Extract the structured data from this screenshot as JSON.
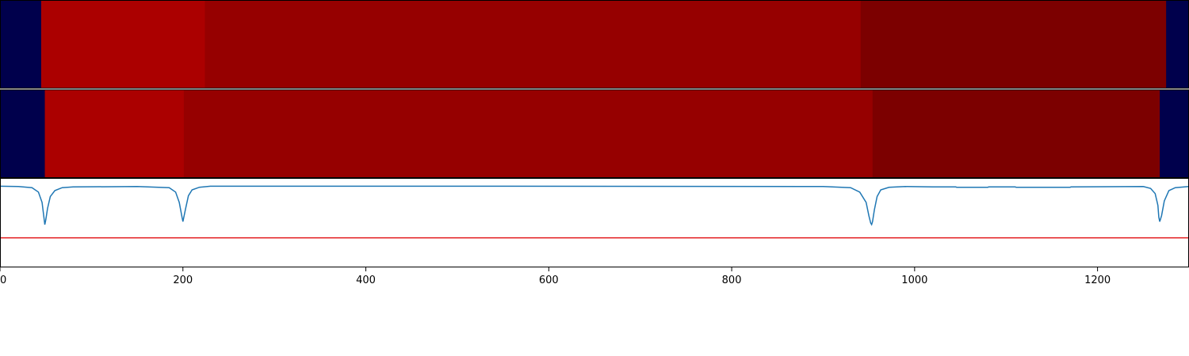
{
  "chart_data": [
    {
      "type": "heatmap",
      "panel": "top-strip",
      "xlim": [
        0,
        1300
      ],
      "segments": [
        {
          "start": 0,
          "end": 45,
          "color": "#00004c"
        },
        {
          "start": 45,
          "end": 224,
          "color": "#ab0000"
        },
        {
          "start": 224,
          "end": 941,
          "color": "#960000"
        },
        {
          "start": 941,
          "end": 1275,
          "color": "#7c0000"
        },
        {
          "start": 1275,
          "end": 1300,
          "color": "#00004c"
        }
      ]
    },
    {
      "type": "heatmap",
      "panel": "middle-strip",
      "xlim": [
        0,
        1300
      ],
      "segments": [
        {
          "start": 0,
          "end": 49,
          "color": "#00004c"
        },
        {
          "start": 49,
          "end": 201,
          "color": "#ab0000"
        },
        {
          "start": 201,
          "end": 954,
          "color": "#960000"
        },
        {
          "start": 954,
          "end": 1268,
          "color": "#7c0000"
        },
        {
          "start": 1268,
          "end": 1300,
          "color": "#00004c"
        }
      ]
    },
    {
      "type": "line",
      "panel": "signal",
      "xlim": [
        0,
        1300
      ],
      "ylim": [
        -1.1,
        0.1
      ],
      "xticks": [
        0,
        200,
        400,
        600,
        800,
        1000,
        1200
      ],
      "threshold": {
        "value": -0.7,
        "color": "#e31a1c"
      },
      "series": [
        {
          "color": "#1f77b4",
          "x": [
            0,
            20,
            35,
            42,
            46,
            48,
            49,
            50,
            52,
            55,
            60,
            68,
            80,
            150,
            185,
            192,
            196,
            199,
            200,
            201,
            203,
            206,
            210,
            218,
            230,
            500,
            900,
            930,
            940,
            947,
            950,
            952,
            953,
            954,
            956,
            959,
            963,
            972,
            990,
            1020,
            1045,
            1046,
            1080,
            1081,
            1110,
            1111,
            1170,
            1171,
            1250,
            1258,
            1263,
            1266,
            1267,
            1268,
            1270,
            1273,
            1278,
            1285,
            1300
          ],
          "y": [
            0.0,
            -0.005,
            -0.02,
            -0.08,
            -0.22,
            -0.42,
            -0.52,
            -0.46,
            -0.3,
            -0.14,
            -0.06,
            -0.02,
            -0.01,
            -0.005,
            -0.02,
            -0.08,
            -0.22,
            -0.42,
            -0.48,
            -0.42,
            -0.3,
            -0.13,
            -0.05,
            -0.015,
            0.0,
            0.0,
            -0.005,
            -0.02,
            -0.08,
            -0.22,
            -0.4,
            -0.5,
            -0.52,
            -0.48,
            -0.32,
            -0.14,
            -0.05,
            -0.015,
            -0.005,
            -0.01,
            -0.01,
            -0.015,
            -0.015,
            -0.01,
            -0.01,
            -0.015,
            -0.015,
            -0.01,
            -0.005,
            -0.03,
            -0.1,
            -0.26,
            -0.42,
            -0.48,
            -0.4,
            -0.2,
            -0.06,
            -0.02,
            -0.005
          ]
        }
      ]
    }
  ]
}
